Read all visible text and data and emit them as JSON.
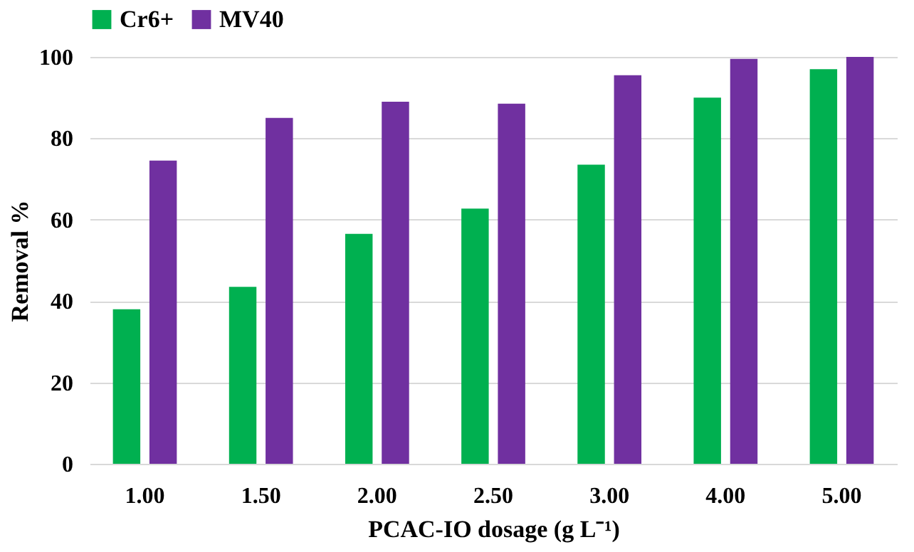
{
  "chart_data": {
    "type": "bar",
    "xlabel": "PCAC-IO dosage (g L⁻¹)",
    "ylabel": "Removal %",
    "categories": [
      "1.00",
      "1.50",
      "2.00",
      "2.50",
      "3.00",
      "4.00",
      "5.00"
    ],
    "series": [
      {
        "name": "Cr6+",
        "color": "#00b050",
        "values": [
          38,
          43.5,
          56.5,
          62.7,
          73.5,
          90,
          97
        ]
      },
      {
        "name": "MV40",
        "color": "#7030a0",
        "values": [
          74.5,
          85,
          89,
          88.5,
          95.5,
          99.5,
          100
        ]
      }
    ],
    "ylim": [
      0,
      100
    ],
    "yticks": [
      0,
      20,
      40,
      60,
      80,
      100
    ],
    "grid": "y",
    "legend": "top"
  }
}
